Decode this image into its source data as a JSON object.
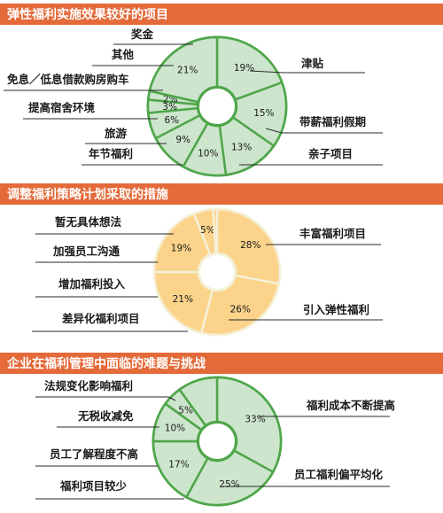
{
  "chart_data": [
    {
      "type": "pie",
      "title": "弹性福利实施效果较好的项目",
      "colors": {
        "fill": "#cde5cd",
        "stroke": "#4fa64a",
        "accent": "#e46a3a"
      },
      "slices": [
        {
          "label": "津贴",
          "value": 19
        },
        {
          "label": "带薪福利假期",
          "value": 15
        },
        {
          "label": "亲子项目",
          "value": 13
        },
        {
          "label": "年节福利",
          "value": 10
        },
        {
          "label": "旅游",
          "value": 9
        },
        {
          "label": "提高宿舍环境",
          "value": 6
        },
        {
          "label": "免息／低息借款购房购车",
          "value": 3
        },
        {
          "label": "其他",
          "value": 2
        },
        {
          "label": "奖金",
          "value": 21
        }
      ]
    },
    {
      "type": "pie",
      "title": "调整福利策略计划采取的措施",
      "colors": {
        "fill": "#fbd38a",
        "stroke": "#f4f1d9",
        "accent": "#e46a3a"
      },
      "slices": [
        {
          "label": "丰富福利项目",
          "value": 28
        },
        {
          "label": "引入弹性福利",
          "value": 26
        },
        {
          "label": "差异化福利项目",
          "value": 21
        },
        {
          "label": "增加福利投入",
          "value": 19
        },
        {
          "label": "加强员工沟通",
          "value": 5
        },
        {
          "label": "暂无具体想法",
          "value": 1,
          "value_shown": ""
        }
      ]
    },
    {
      "type": "pie",
      "title": "企业在福利管理中面临的难题与挑战",
      "colors": {
        "fill": "#cde5cd",
        "stroke": "#4fa64a",
        "accent": "#e46a3a"
      },
      "slices": [
        {
          "label": "福利成本不断提高",
          "value": 33
        },
        {
          "label": "员工福利偏平均化",
          "value": 25
        },
        {
          "label": "福利项目较少",
          "value": 17
        },
        {
          "label": "员工了解程度不高",
          "value": 10
        },
        {
          "label": "无税收减免",
          "value": 5
        },
        {
          "label": "法规变化影响福利",
          "value": 10,
          "value_shown": ""
        }
      ]
    }
  ]
}
